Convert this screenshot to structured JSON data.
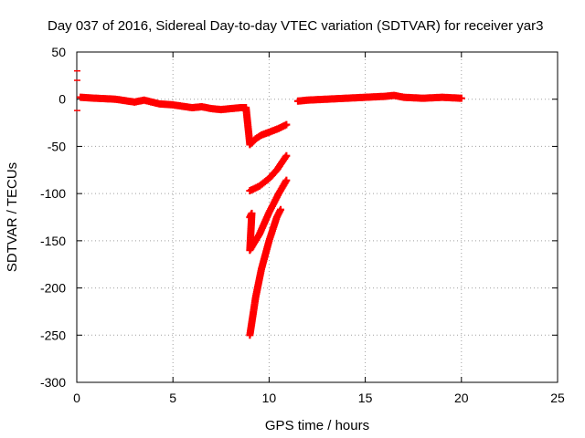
{
  "chart_data": {
    "type": "scatter",
    "title": "Day 037 of 2016, Sidereal Day-to-day VTEC variation (SDTVAR) for receiver yar3",
    "xlabel": "GPS time / hours",
    "ylabel": "SDTVAR / TECUs",
    "xlim": [
      0,
      25
    ],
    "ylim": [
      -300,
      50
    ],
    "xticks": [
      "0",
      "5",
      "10",
      "15",
      "20",
      "25"
    ],
    "yticks": [
      "50",
      "0",
      "-50",
      "-100",
      "-150",
      "-200",
      "-250",
      "-300"
    ],
    "grid": true,
    "marker_color": "#ff0000",
    "series": [
      {
        "points": [
          [
            0.2,
            2
          ],
          [
            1,
            1
          ],
          [
            2,
            0
          ],
          [
            3,
            -3
          ],
          [
            3.5,
            -1
          ],
          [
            4.3,
            -5
          ],
          [
            5,
            -6
          ],
          [
            6,
            -9
          ],
          [
            6.5,
            -8
          ],
          [
            7,
            -10
          ],
          [
            7.5,
            -11
          ],
          [
            8,
            -10
          ],
          [
            8.5,
            -9
          ],
          [
            8.8,
            -9
          ],
          [
            9.0,
            -48
          ],
          [
            9.3,
            -42
          ],
          [
            9.6,
            -38
          ],
          [
            10,
            -35
          ],
          [
            10.5,
            -31
          ],
          [
            10.9,
            -27
          ],
          [
            9.0,
            -97
          ],
          [
            9.5,
            -92
          ],
          [
            10,
            -84
          ],
          [
            10.4,
            -75
          ],
          [
            10.9,
            -60
          ],
          [
            9.0,
            -125
          ],
          [
            9.1,
            -121
          ],
          [
            9.0,
            -160
          ],
          [
            9.5,
            -143
          ],
          [
            10,
            -120
          ],
          [
            10.5,
            -100
          ],
          [
            10.9,
            -86
          ],
          [
            9.0,
            -250
          ],
          [
            9.3,
            -210
          ],
          [
            9.6,
            -180
          ],
          [
            10,
            -150
          ],
          [
            10.4,
            -125
          ],
          [
            10.6,
            -117
          ],
          [
            11.5,
            -2
          ],
          [
            12,
            -1
          ],
          [
            13,
            0
          ],
          [
            14,
            1
          ],
          [
            15,
            2
          ],
          [
            16,
            3
          ],
          [
            16.5,
            4
          ],
          [
            17,
            2
          ],
          [
            18,
            1
          ],
          [
            19,
            2
          ],
          [
            20,
            1
          ]
        ]
      }
    ],
    "y_axis_marks": [
      30,
      20,
      -12
    ]
  }
}
